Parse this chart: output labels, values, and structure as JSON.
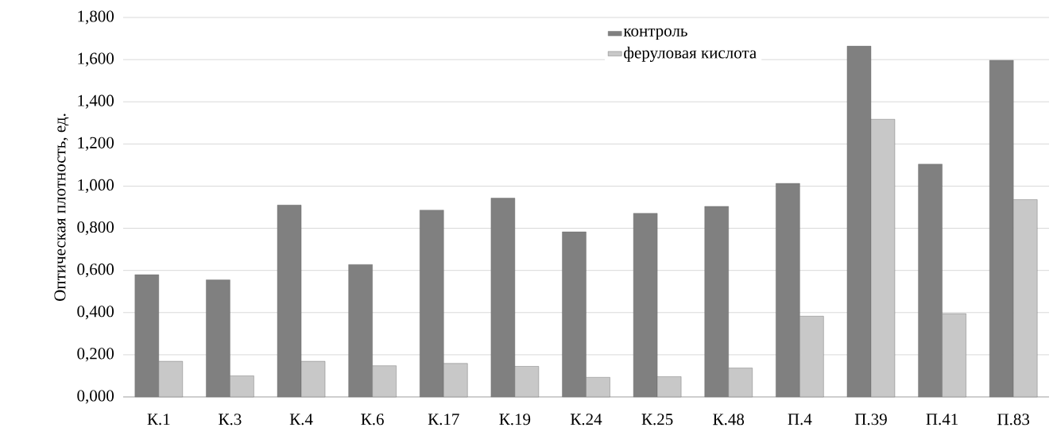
{
  "chart_data": {
    "type": "bar",
    "ylabel": "Оптическая плотность, ед.",
    "categories": [
      "К.1",
      "К.3",
      "К.4",
      "К.6",
      "К.17",
      "К.19",
      "К.24",
      "К.25",
      "К.48",
      "П.4",
      "П.39",
      "П.41",
      "П.83"
    ],
    "series": [
      {
        "name": "контроль",
        "color": "#808080",
        "values": [
          0.58,
          0.555,
          0.91,
          0.628,
          0.886,
          0.943,
          0.783,
          0.871,
          0.904,
          1.013,
          1.664,
          1.104,
          1.597
        ]
      },
      {
        "name": "феруловая кислота",
        "color": "#c8c8c8",
        "values": [
          0.169,
          0.1,
          0.169,
          0.148,
          0.159,
          0.145,
          0.093,
          0.096,
          0.137,
          0.383,
          1.317,
          0.395,
          0.936
        ]
      }
    ],
    "ylim": [
      0,
      1.8
    ],
    "yticks": [
      {
        "value": 0,
        "label": "0,000"
      },
      {
        "value": 0.2,
        "label": "0,200"
      },
      {
        "value": 0.4,
        "label": "0,400"
      },
      {
        "value": 0.6,
        "label": "0,600"
      },
      {
        "value": 0.8,
        "label": "0,800"
      },
      {
        "value": 1.0,
        "label": "1,000"
      },
      {
        "value": 1.2,
        "label": "1,200"
      },
      {
        "value": 1.4,
        "label": "1,400"
      },
      {
        "value": 1.6,
        "label": "1,600"
      },
      {
        "value": 1.8,
        "label": "1,800"
      }
    ],
    "grid": "y",
    "legend": "top"
  }
}
